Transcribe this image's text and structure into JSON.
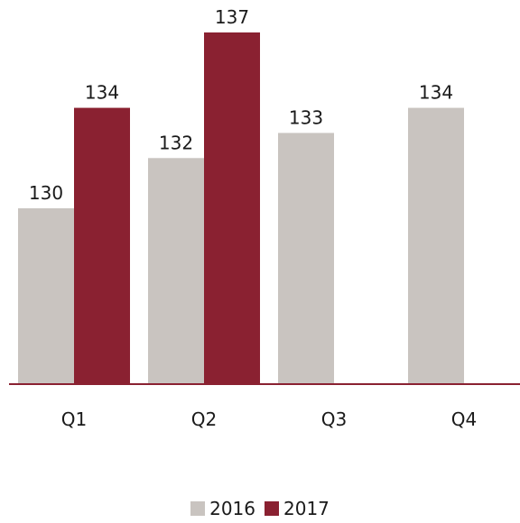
{
  "colors": {
    "series_2016": "#c9c4c0",
    "series_2017": "#8a2131",
    "axis": "#8a2131",
    "text": "#1a1a1a"
  },
  "chart_data": {
    "type": "bar",
    "categories": [
      "Q1",
      "Q2",
      "Q3",
      "Q4"
    ],
    "series": [
      {
        "name": "2016",
        "values": [
          130,
          132,
          133,
          134
        ],
        "labels": [
          "130",
          "132",
          "133",
          "134"
        ]
      },
      {
        "name": "2017",
        "values": [
          134,
          137,
          null,
          null
        ],
        "labels": [
          "134",
          "137",
          "",
          ""
        ]
      }
    ],
    "ylim": [
      123,
      137
    ],
    "grid": false,
    "legend": "bottom"
  }
}
